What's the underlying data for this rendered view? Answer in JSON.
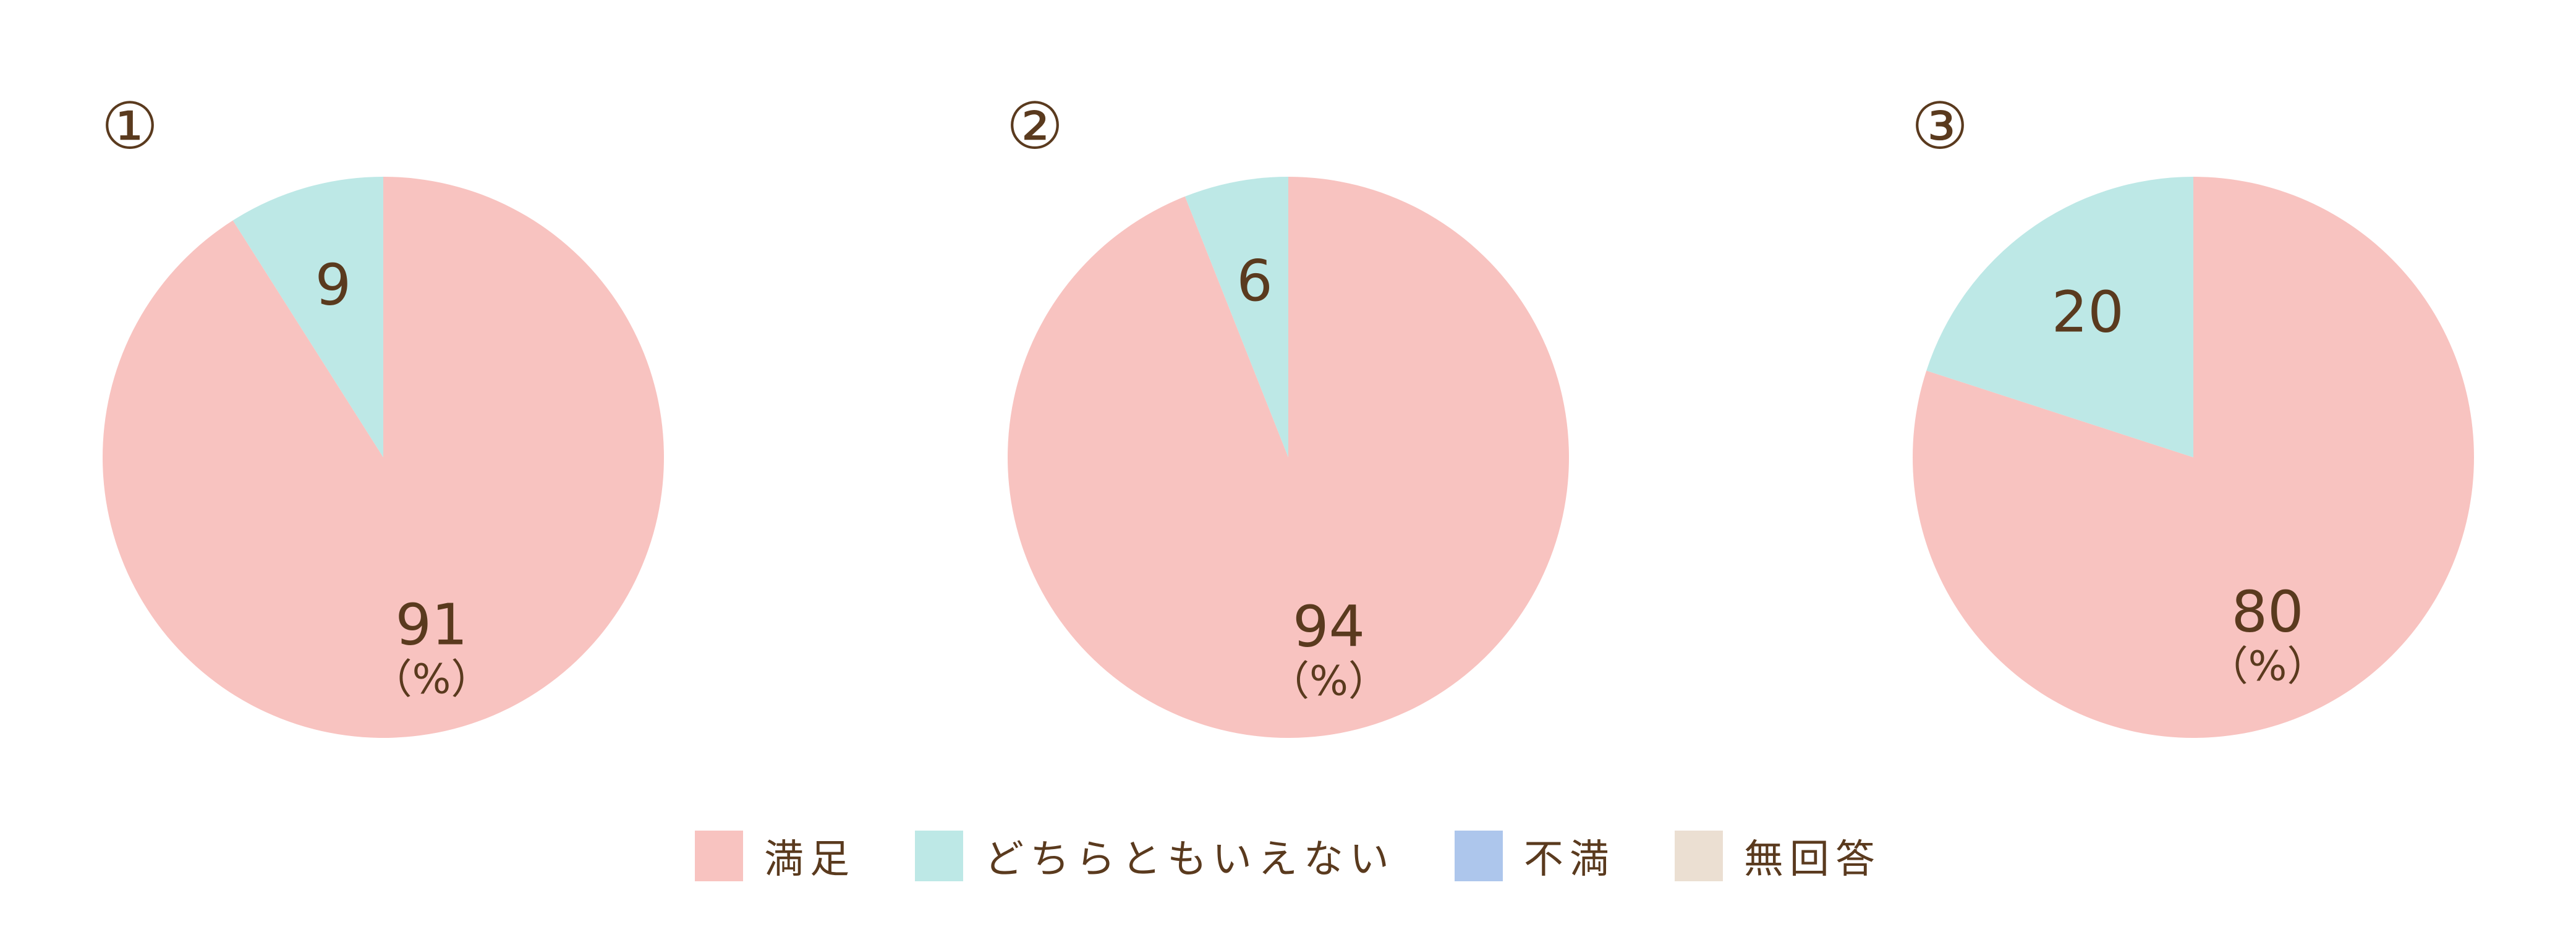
{
  "chart_data": [
    {
      "type": "pie",
      "title": "①",
      "unit_label": "（%）",
      "categories": [
        "満足",
        "どちらともいえない",
        "不満",
        "無回答"
      ],
      "values": [
        91,
        9,
        0,
        0
      ],
      "value_labels": [
        "91",
        "9",
        "",
        ""
      ]
    },
    {
      "type": "pie",
      "title": "②",
      "unit_label": "（%）",
      "categories": [
        "満足",
        "どちらともいえない",
        "不満",
        "無回答"
      ],
      "values": [
        94,
        6,
        0,
        0
      ],
      "value_labels": [
        "94",
        "6",
        "",
        ""
      ]
    },
    {
      "type": "pie",
      "title": "③",
      "unit_label": "（%）",
      "categories": [
        "満足",
        "どちらともいえない",
        "不満",
        "無回答"
      ],
      "values": [
        80,
        20,
        0,
        0
      ],
      "value_labels": [
        "80",
        "20",
        "",
        ""
      ]
    }
  ],
  "legend": {
    "placement": "bottom",
    "items": [
      {
        "label": "満足",
        "color": "#f8c3c0"
      },
      {
        "label": "どちらともいえない",
        "color": "#bde8e6"
      },
      {
        "label": "不満",
        "color": "#adc6ec"
      },
      {
        "label": "無回答",
        "color": "#ebdfd2"
      }
    ]
  }
}
